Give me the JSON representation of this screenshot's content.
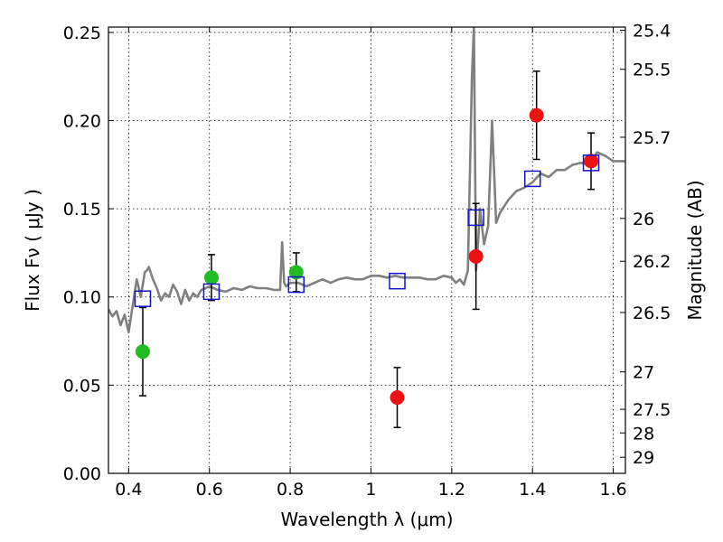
{
  "chart_data": {
    "type": "scatter",
    "xlabel": "Wavelength  λ (μm)",
    "ylabel": "Flux  Fν  ( μJy )",
    "y2label": "Magnitude (AB)",
    "xlim": [
      0.35,
      1.63
    ],
    "ylim": [
      0.0,
      0.253
    ],
    "grid": true,
    "x_ticks": [
      0.4,
      0.6,
      0.8,
      1.0,
      1.2,
      1.4,
      1.6
    ],
    "x_tick_labels": [
      "0.4",
      "0.6",
      "0.8",
      "1",
      "1.2",
      "1.4",
      "1.6"
    ],
    "y_ticks": [
      0.0,
      0.05,
      0.1,
      0.15,
      0.2,
      0.25
    ],
    "y_tick_labels": [
      "0.00",
      "0.05",
      "0.10",
      "0.15",
      "0.20",
      "0.25"
    ],
    "y2_ticks": [
      "25.4",
      "25.5",
      "25.7",
      "26",
      "26.2",
      "26.5",
      "27",
      "27.5",
      "28",
      "29"
    ],
    "colors": {
      "spectrum": "#808080",
      "green_points": "#22bb22",
      "red_points": "#ee1111",
      "model_squares": "#1111cc",
      "error_bars": "#000000"
    },
    "series": [
      {
        "kind": "line",
        "x": [
          0.35,
          0.36,
          0.37,
          0.38,
          0.39,
          0.4,
          0.41,
          0.42,
          0.43,
          0.44,
          0.445,
          0.45,
          0.46,
          0.47,
          0.48,
          0.49,
          0.5,
          0.51,
          0.52,
          0.53,
          0.54,
          0.55,
          0.56,
          0.57,
          0.58,
          0.59,
          0.6,
          0.62,
          0.64,
          0.66,
          0.68,
          0.7,
          0.72,
          0.74,
          0.76,
          0.775,
          0.78,
          0.785,
          0.79,
          0.8,
          0.82,
          0.84,
          0.86,
          0.88,
          0.9,
          0.92,
          0.94,
          0.96,
          0.98,
          1.0,
          1.02,
          1.04,
          1.06,
          1.08,
          1.1,
          1.12,
          1.14,
          1.16,
          1.18,
          1.2,
          1.21,
          1.22,
          1.23,
          1.24,
          1.25,
          1.255,
          1.26,
          1.265,
          1.27,
          1.28,
          1.29,
          1.3,
          1.305,
          1.31,
          1.32,
          1.34,
          1.36,
          1.38,
          1.4,
          1.42,
          1.44,
          1.46,
          1.48,
          1.5,
          1.52,
          1.54,
          1.56,
          1.58,
          1.6,
          1.63
        ],
        "y": [
          0.093,
          0.089,
          0.092,
          0.084,
          0.09,
          0.08,
          0.095,
          0.11,
          0.1,
          0.114,
          0.115,
          0.117,
          0.11,
          0.105,
          0.098,
          0.102,
          0.1,
          0.107,
          0.103,
          0.096,
          0.104,
          0.098,
          0.102,
          0.1,
          0.104,
          0.105,
          0.106,
          0.104,
          0.103,
          0.105,
          0.104,
          0.106,
          0.105,
          0.105,
          0.104,
          0.104,
          0.131,
          0.108,
          0.106,
          0.108,
          0.108,
          0.106,
          0.108,
          0.11,
          0.108,
          0.11,
          0.111,
          0.11,
          0.11,
          0.112,
          0.112,
          0.111,
          0.112,
          0.111,
          0.111,
          0.111,
          0.11,
          0.11,
          0.112,
          0.111,
          0.108,
          0.11,
          0.107,
          0.115,
          0.225,
          0.253,
          0.115,
          0.13,
          0.15,
          0.13,
          0.14,
          0.2,
          0.17,
          0.142,
          0.148,
          0.155,
          0.16,
          0.162,
          0.165,
          0.17,
          0.168,
          0.172,
          0.172,
          0.175,
          0.176,
          0.175,
          0.182,
          0.18,
          0.177,
          0.177
        ]
      },
      {
        "kind": "points-green",
        "x": [
          0.435,
          0.605,
          0.815
        ],
        "y": [
          0.069,
          0.111,
          0.114
        ],
        "err": [
          0.025,
          0.013,
          0.011
        ]
      },
      {
        "kind": "points-red",
        "x": [
          1.065,
          1.26,
          1.41,
          1.545
        ],
        "y": [
          0.043,
          0.123,
          0.203,
          0.177
        ],
        "err": [
          0.017,
          0.03,
          0.025,
          0.016
        ]
      },
      {
        "kind": "squares",
        "x": [
          0.435,
          0.605,
          0.815,
          1.065,
          1.26,
          1.4,
          1.545
        ],
        "y": [
          0.099,
          0.103,
          0.107,
          0.109,
          0.145,
          0.167,
          0.176
        ]
      }
    ]
  }
}
